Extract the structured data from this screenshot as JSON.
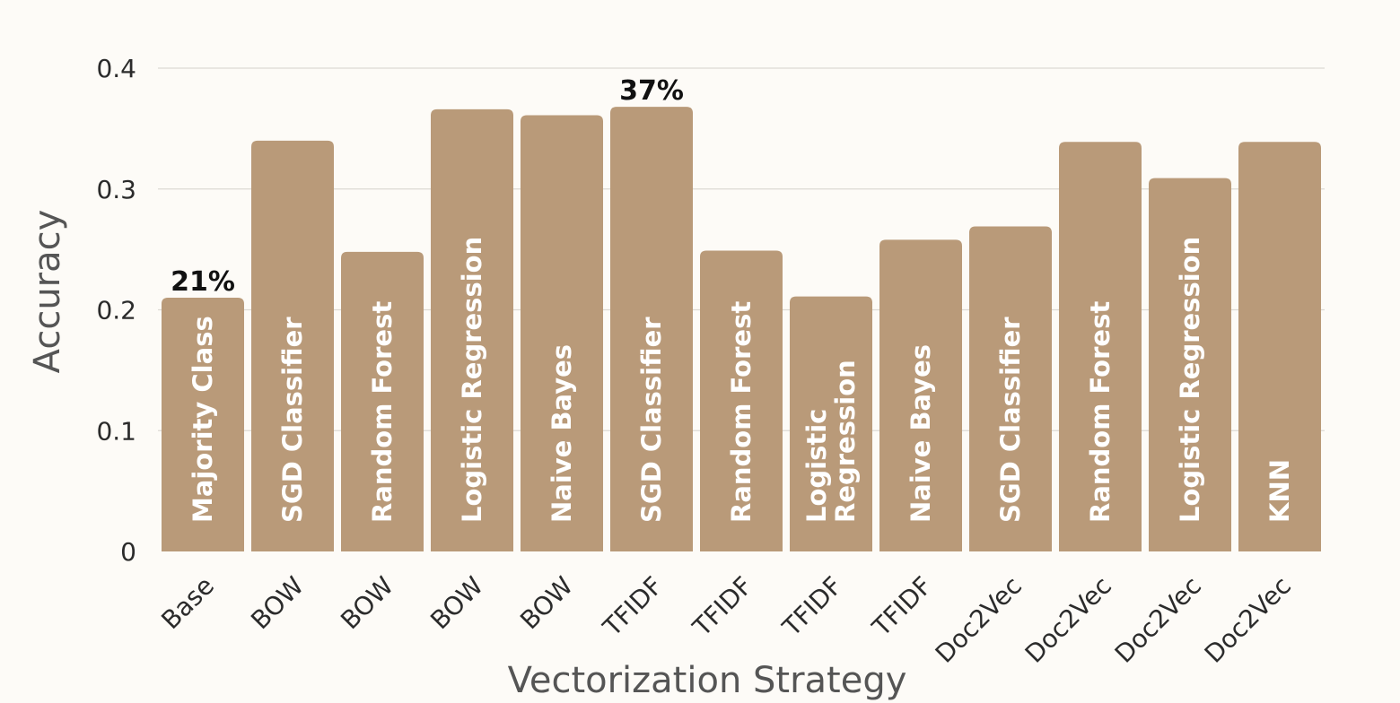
{
  "chart_data": {
    "type": "bar",
    "xlabel": "Vectorization Strategy",
    "ylabel": "Accuracy",
    "ylim": [
      0,
      0.4
    ],
    "yticks": [
      0,
      0.1,
      0.2,
      0.3,
      0.4
    ],
    "ytick_labels": [
      "0",
      "0.1",
      "0.2",
      "0.3",
      "0.4"
    ],
    "grid": true,
    "categories": [
      "Base",
      "BOW",
      "BOW",
      "BOW",
      "BOW",
      "TFIDF",
      "TFIDF",
      "TFIDF",
      "TFIDF",
      "Doc2Vec",
      "Doc2Vec",
      "Doc2Vec",
      "Doc2Vec"
    ],
    "bar_labels": [
      [
        "Majority Class"
      ],
      [
        "SGD Classifier"
      ],
      [
        "Random Forest"
      ],
      [
        "Logistic Regression"
      ],
      [
        "Naive Bayes"
      ],
      [
        "SGD Classifier"
      ],
      [
        "Random Forest"
      ],
      [
        "Logistic",
        "Regression"
      ],
      [
        "Naive Bayes"
      ],
      [
        "SGD Classifier"
      ],
      [
        "Random Forest"
      ],
      [
        "Logistic Regression"
      ],
      [
        "KNN"
      ]
    ],
    "values": [
      0.21,
      0.34,
      0.248,
      0.366,
      0.361,
      0.368,
      0.249,
      0.211,
      0.258,
      0.269,
      0.339,
      0.309,
      0.339
    ],
    "annotations": [
      {
        "index": 0,
        "text": "21%"
      },
      {
        "index": 5,
        "text": "37%"
      }
    ],
    "bar_color": "#b99a79",
    "grid_color": "#dddad4",
    "background": "#fdfbf7"
  }
}
